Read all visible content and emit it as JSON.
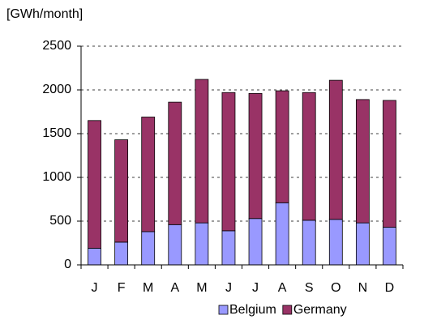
{
  "chart_data": {
    "type": "stacked_bar",
    "y_label": "[GWh/month]",
    "categories": [
      "J",
      "F",
      "M",
      "A",
      "M",
      "J",
      "J",
      "A",
      "S",
      "O",
      "N",
      "D"
    ],
    "series": [
      {
        "name": "Belgium",
        "color": "#9999ff",
        "values": [
          190,
          260,
          380,
          460,
          480,
          390,
          530,
          710,
          510,
          520,
          480,
          430
        ]
      },
      {
        "name": "Germany",
        "color": "#993366",
        "values": [
          1460,
          1170,
          1310,
          1400,
          1640,
          1580,
          1430,
          1280,
          1460,
          1590,
          1410,
          1450
        ]
      }
    ],
    "ylim": [
      0,
      2500
    ],
    "yticks": [
      0,
      500,
      1000,
      1500,
      2000,
      2500
    ],
    "grid": true,
    "legend": "bottom"
  }
}
